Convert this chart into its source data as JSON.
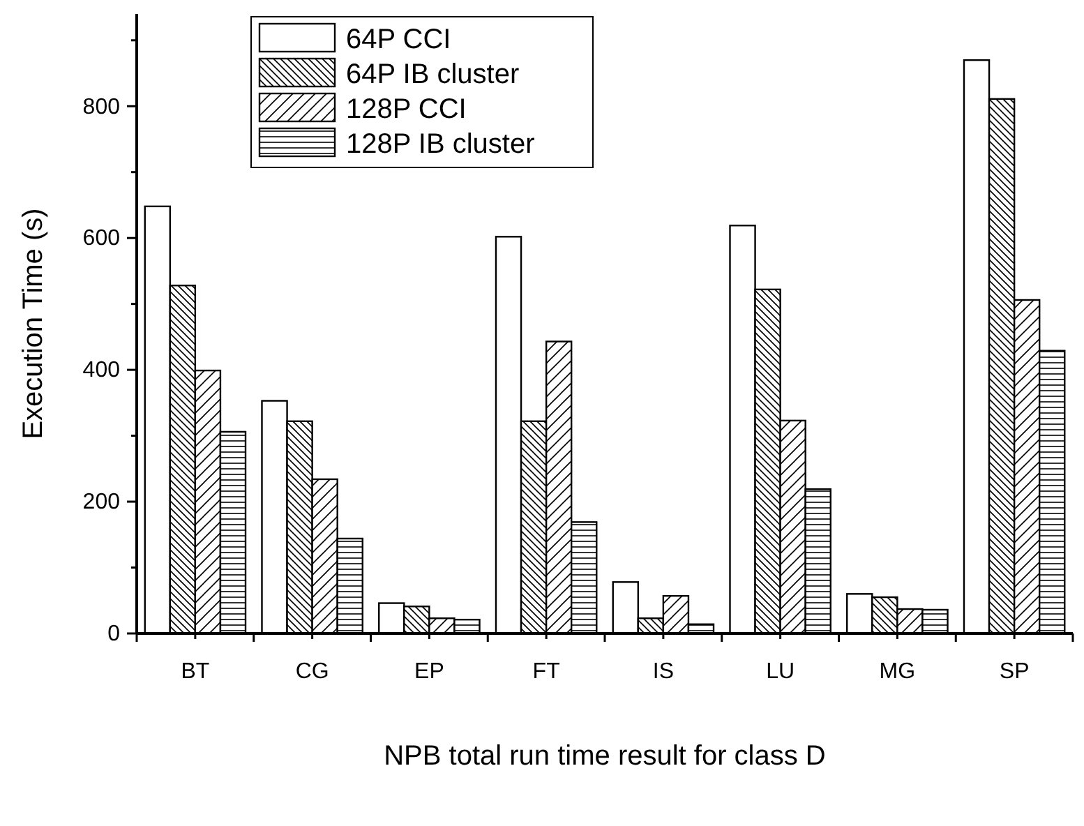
{
  "chart_data": {
    "type": "bar",
    "xlabel": "NPB total run time result for class D",
    "ylabel": "Execution Time (s)",
    "categories": [
      "BT",
      "CG",
      "EP",
      "FT",
      "IS",
      "LU",
      "MG",
      "SP"
    ],
    "series": [
      {
        "name": "64P CCI",
        "color": "#ffffff",
        "values": [
          648,
          353,
          46,
          602,
          78,
          619,
          60,
          870
        ]
      },
      {
        "name": "64P IB cluster",
        "color": "#000000",
        "values": [
          528,
          322,
          41,
          322,
          23,
          522,
          55,
          811
        ]
      },
      {
        "name": "128P CCI",
        "color": "#000000",
        "values": [
          399,
          234,
          23,
          443,
          57,
          323,
          37,
          506
        ]
      },
      {
        "name": "128P IB cluster",
        "color": "#000000",
        "values": [
          306,
          144,
          21,
          169,
          14,
          219,
          36,
          429
        ]
      }
    ],
    "ylim": [
      0,
      940
    ],
    "yticks": [
      0,
      {
        "value": 100,
        "label": null
      },
      200,
      {
        "value": 300,
        "label": null
      },
      400,
      {
        "value": 500,
        "label": null
      },
      600,
      {
        "value": 700,
        "label": null
      },
      800,
      {
        "value": 900,
        "label": null
      }
    ],
    "grid": false,
    "legend": "top left"
  }
}
